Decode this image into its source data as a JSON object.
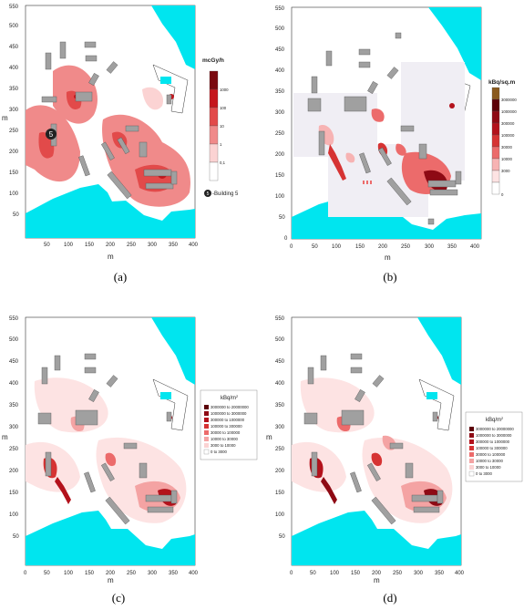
{
  "figure": {
    "panels": [
      {
        "id": "a",
        "caption": "(a)",
        "x_axis_label": "m",
        "y_axis_label": "m",
        "x_ticks": [
          "50",
          "100",
          "150",
          "200",
          "250",
          "300",
          "350",
          "400"
        ],
        "y_ticks": [
          "50",
          "100",
          "150",
          "200",
          "250",
          "300",
          "350",
          "400",
          "450",
          "500",
          "550"
        ],
        "legend": {
          "title": "mcGy/h",
          "values": [
            "1000",
            "100",
            "10",
            "1",
            "0,1"
          ],
          "colors": [
            "#7a0a10",
            "#c5161c",
            "#e24a4a",
            "#f08a8a",
            "#fbd3d3",
            "#ffffff"
          ]
        },
        "marker": {
          "label": "5",
          "annotation": "-Building 5"
        }
      },
      {
        "id": "b",
        "caption": "(b)",
        "x_axis_label": "m",
        "y_axis_label": "",
        "x_ticks": [
          "0",
          "50",
          "100",
          "150",
          "200",
          "250",
          "300",
          "350",
          "400"
        ],
        "y_ticks": [
          "0",
          "50",
          "100",
          "150",
          "200",
          "250",
          "300",
          "350",
          "400",
          "450",
          "500",
          "550"
        ],
        "legend": {
          "title": "kBq/sq.m",
          "values": [
            "3000000",
            "1000000",
            "300000",
            "100000",
            "30000",
            "10000",
            "3000",
            "0"
          ],
          "colors": [
            "#8a5a1e",
            "#5c0008",
            "#8e0a14",
            "#b3121c",
            "#d63333",
            "#ec6b6b",
            "#f7b3b3",
            "#fde3e3",
            "#ffffff"
          ]
        }
      },
      {
        "id": "c",
        "caption": "(c)",
        "x_axis_label": "m",
        "y_axis_label": "m",
        "x_ticks": [
          "0",
          "50",
          "100",
          "150",
          "200",
          "250",
          "300",
          "350",
          "400"
        ],
        "y_ticks": [
          "50",
          "100",
          "150",
          "200",
          "250",
          "300",
          "350",
          "400",
          "450",
          "500",
          "550"
        ],
        "legend": {
          "title": "kBq/m",
          "title_sup": "2",
          "entries": [
            "3000000 to 20000000",
            "1000000 to 3000000",
            "300000 to 1000000",
            "100000 to 300000",
            "30000 to 100000",
            "10000 to 30000",
            "3000 to 10000",
            "0 to 3000"
          ],
          "colors": [
            "#5c0008",
            "#8e0a14",
            "#b3121c",
            "#d63333",
            "#ec6b6b",
            "#f4a3a3",
            "#fbd3d3",
            "#ffffff"
          ]
        }
      },
      {
        "id": "d",
        "caption": "(d)",
        "x_axis_label": "m",
        "y_axis_label": "m",
        "x_ticks": [
          "0",
          "50",
          "100",
          "150",
          "200",
          "250",
          "300",
          "350",
          "400"
        ],
        "y_ticks": [
          "50",
          "100",
          "150",
          "200",
          "250",
          "300",
          "350",
          "400",
          "450",
          "500",
          "550"
        ],
        "legend": {
          "title": "kBq/m",
          "title_sup": "2",
          "entries": [
            "3000000 to 20000000",
            "1000000 to 3000000",
            "300000 to 1000000",
            "100000 to 300000",
            "30000 to 100000",
            "10000 to 30000",
            "3000 to 10000",
            "0 to 3000"
          ],
          "colors": [
            "#5c0008",
            "#8e0a14",
            "#b3121c",
            "#d63333",
            "#ec6b6b",
            "#f4a3a3",
            "#fbd3d3",
            "#ffffff"
          ]
        }
      }
    ],
    "colors": {
      "sea": "#00e5ef",
      "building": "#a0a0a0",
      "building_stroke": "#555555",
      "frame": "#333333"
    }
  }
}
